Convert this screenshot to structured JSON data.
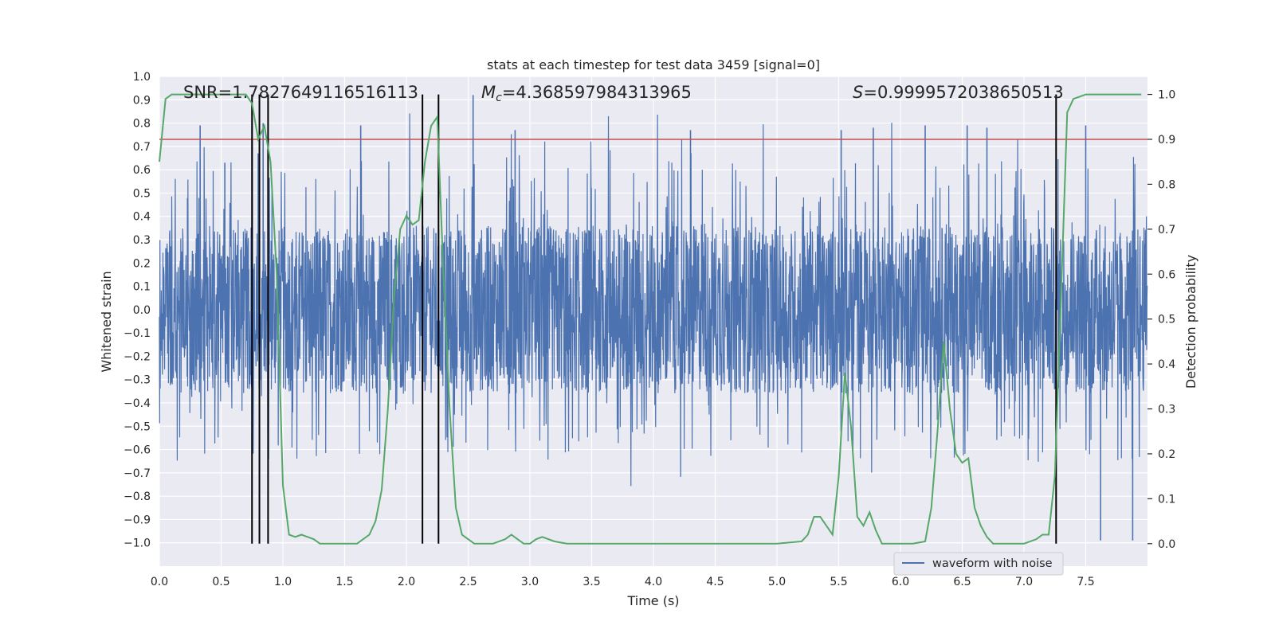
{
  "chart_data": {
    "type": "line",
    "title": "stats at each timestep for test data 3459 [signal=0]",
    "xlabel": "Time (s)",
    "ylabel": "Whitened strain",
    "y2label": "Detection probability",
    "xlim": [
      0,
      8
    ],
    "ylim": [
      -1.1,
      1.0
    ],
    "y2lim": [
      -0.05,
      1.04
    ],
    "xticks": [
      "0.0",
      "0.5",
      "1.0",
      "1.5",
      "2.0",
      "2.5",
      "3.0",
      "3.5",
      "4.0",
      "4.5",
      "5.0",
      "5.5",
      "6.0",
      "6.5",
      "7.0",
      "7.5"
    ],
    "yticks": [
      "1.0",
      "0.9",
      "0.8",
      "0.7",
      "0.6",
      "0.5",
      "0.4",
      "0.3",
      "0.2",
      "0.1",
      "0.0",
      "−0.1",
      "−0.2",
      "−0.3",
      "−0.4",
      "−0.5",
      "−0.6",
      "−0.7",
      "−0.8",
      "−0.9",
      "−1.0"
    ],
    "y2ticks": [
      "1.0",
      "0.9",
      "0.8",
      "0.7",
      "0.6",
      "0.5",
      "0.4",
      "0.3",
      "0.2",
      "0.1",
      "0.0"
    ],
    "annotations": {
      "snr": "SNR=1.7827649116516113",
      "mc_symbol": "M",
      "mc_sub": "c",
      "mc_value": "=4.368597984313965",
      "s_symbol": "S",
      "s_value": "=0.9999572038650513"
    },
    "legend": {
      "entry": "waveform with noise",
      "location": "lower-right"
    },
    "threshold": 0.9,
    "vertical_markers": [
      0.75,
      0.81,
      0.88,
      2.13,
      2.26,
      7.26
    ],
    "series": [
      {
        "name": "waveform with noise",
        "color": "#4c72b0",
        "description": "noise strain sampled over 0-8 s, amplitude mostly within ±0.35 with spikes up to ~±1.0",
        "spike_times": [
          0.33,
          0.53,
          0.8,
          0.84,
          1.63,
          2.54,
          2.88,
          4.3,
          5.52,
          5.78,
          6.2,
          6.54,
          6.7,
          7.5,
          7.62,
          7.88
        ],
        "spike_values": [
          0.79,
          0.63,
          0.67,
          0.8,
          0.79,
          0.92,
          0.77,
          0.77,
          0.77,
          0.78,
          0.79,
          0.79,
          0.78,
          0.79,
          -0.99,
          -0.99
        ]
      },
      {
        "name": "detection probability",
        "color": "#55a868",
        "x": [
          0.0,
          0.05,
          0.1,
          0.15,
          0.2,
          0.3,
          0.4,
          0.5,
          0.6,
          0.7,
          0.75,
          0.8,
          0.85,
          0.9,
          0.95,
          1.0,
          1.05,
          1.1,
          1.15,
          1.2,
          1.25,
          1.3,
          1.4,
          1.5,
          1.6,
          1.7,
          1.75,
          1.8,
          1.85,
          1.9,
          1.95,
          2.0,
          2.05,
          2.1,
          2.15,
          2.2,
          2.25,
          2.3,
          2.35,
          2.4,
          2.45,
          2.5,
          2.55,
          2.6,
          2.7,
          2.8,
          2.85,
          2.9,
          2.95,
          3.0,
          3.05,
          3.1,
          3.15,
          3.2,
          3.3,
          3.4,
          3.5,
          3.6,
          3.7,
          3.8,
          4.0,
          4.2,
          4.4,
          4.6,
          4.8,
          5.0,
          5.2,
          5.25,
          5.3,
          5.35,
          5.4,
          5.45,
          5.5,
          5.55,
          5.6,
          5.65,
          5.7,
          5.75,
          5.8,
          5.85,
          5.9,
          6.0,
          6.1,
          6.2,
          6.25,
          6.3,
          6.35,
          6.4,
          6.45,
          6.5,
          6.55,
          6.6,
          6.65,
          6.7,
          6.75,
          6.8,
          6.9,
          7.0,
          7.1,
          7.15,
          7.2,
          7.25,
          7.3,
          7.35,
          7.4,
          7.45,
          7.5,
          7.6,
          7.7,
          7.8,
          7.9,
          7.95
        ],
        "y": [
          0.85,
          0.99,
          1.0,
          1.0,
          1.0,
          1.0,
          1.0,
          1.0,
          1.0,
          1.0,
          0.98,
          0.9,
          0.93,
          0.85,
          0.6,
          0.13,
          0.02,
          0.015,
          0.02,
          0.015,
          0.01,
          0.0,
          0.0,
          0.0,
          0.0,
          0.02,
          0.05,
          0.12,
          0.3,
          0.55,
          0.7,
          0.73,
          0.71,
          0.72,
          0.85,
          0.93,
          0.95,
          0.6,
          0.3,
          0.08,
          0.02,
          0.01,
          0.0,
          0.0,
          0.0,
          0.01,
          0.02,
          0.01,
          0.0,
          0.0,
          0.01,
          0.015,
          0.01,
          0.005,
          0.0,
          0.0,
          0.0,
          0.0,
          0.0,
          0.0,
          0.0,
          0.0,
          0.0,
          0.0,
          0.0,
          0.0,
          0.005,
          0.02,
          0.06,
          0.06,
          0.04,
          0.02,
          0.15,
          0.38,
          0.26,
          0.06,
          0.04,
          0.07,
          0.03,
          0.0,
          0.0,
          0.0,
          0.0,
          0.005,
          0.08,
          0.25,
          0.45,
          0.3,
          0.2,
          0.18,
          0.19,
          0.08,
          0.04,
          0.015,
          0.0,
          0.0,
          0.0,
          0.0,
          0.01,
          0.02,
          0.02,
          0.15,
          0.55,
          0.96,
          0.99,
          0.995,
          1.0,
          1.0,
          1.0,
          1.0,
          1.0,
          1.0
        ]
      }
    ]
  },
  "colors": {
    "plot_bg": "#eaeaf2",
    "grid": "#ffffff",
    "threshold_line": "#c44e52",
    "marker_line": "#000000"
  }
}
